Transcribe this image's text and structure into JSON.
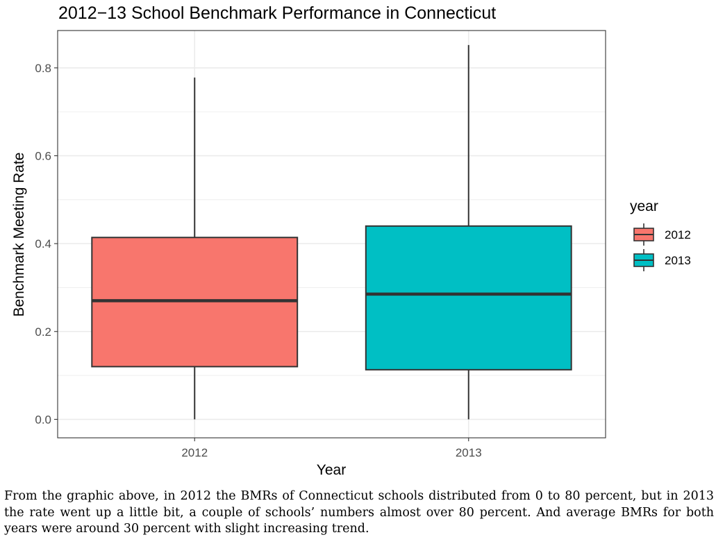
{
  "chart_data": {
    "type": "boxplot",
    "title": "2012−13 School Benchmark Performance in Connecticut",
    "xlabel": "Year",
    "ylabel": "Benchmark Meeting Rate",
    "categories": [
      "2012",
      "2013"
    ],
    "ylim": [
      -0.042,
      0.885
    ],
    "yticks": [
      0.0,
      0.2,
      0.4,
      0.6,
      0.8
    ],
    "ytick_labels": [
      "0.0",
      "0.2",
      "0.4",
      "0.6",
      "0.8"
    ],
    "grid": true,
    "legend": {
      "title": "year",
      "position": "right",
      "entries": [
        "2012",
        "2013"
      ]
    },
    "colors": {
      "2012": "#F8766D",
      "2013": "#00BFC4"
    },
    "series": [
      {
        "name": "2012",
        "min": 0.0,
        "q1": 0.12,
        "median": 0.27,
        "q3": 0.414,
        "max": 0.778
      },
      {
        "name": "2013",
        "min": 0.0,
        "q1": 0.113,
        "median": 0.285,
        "q3": 0.44,
        "max": 0.852
      }
    ]
  },
  "caption": "From the graphic above, in 2012 the BMRs of Connecticut schools distributed from 0 to 80 percent, but in 2013 the rate went up a little bit, a couple of schools’ numbers almost over 80 percent. And average BMRs for both years were around 30 percent with slight increasing trend."
}
